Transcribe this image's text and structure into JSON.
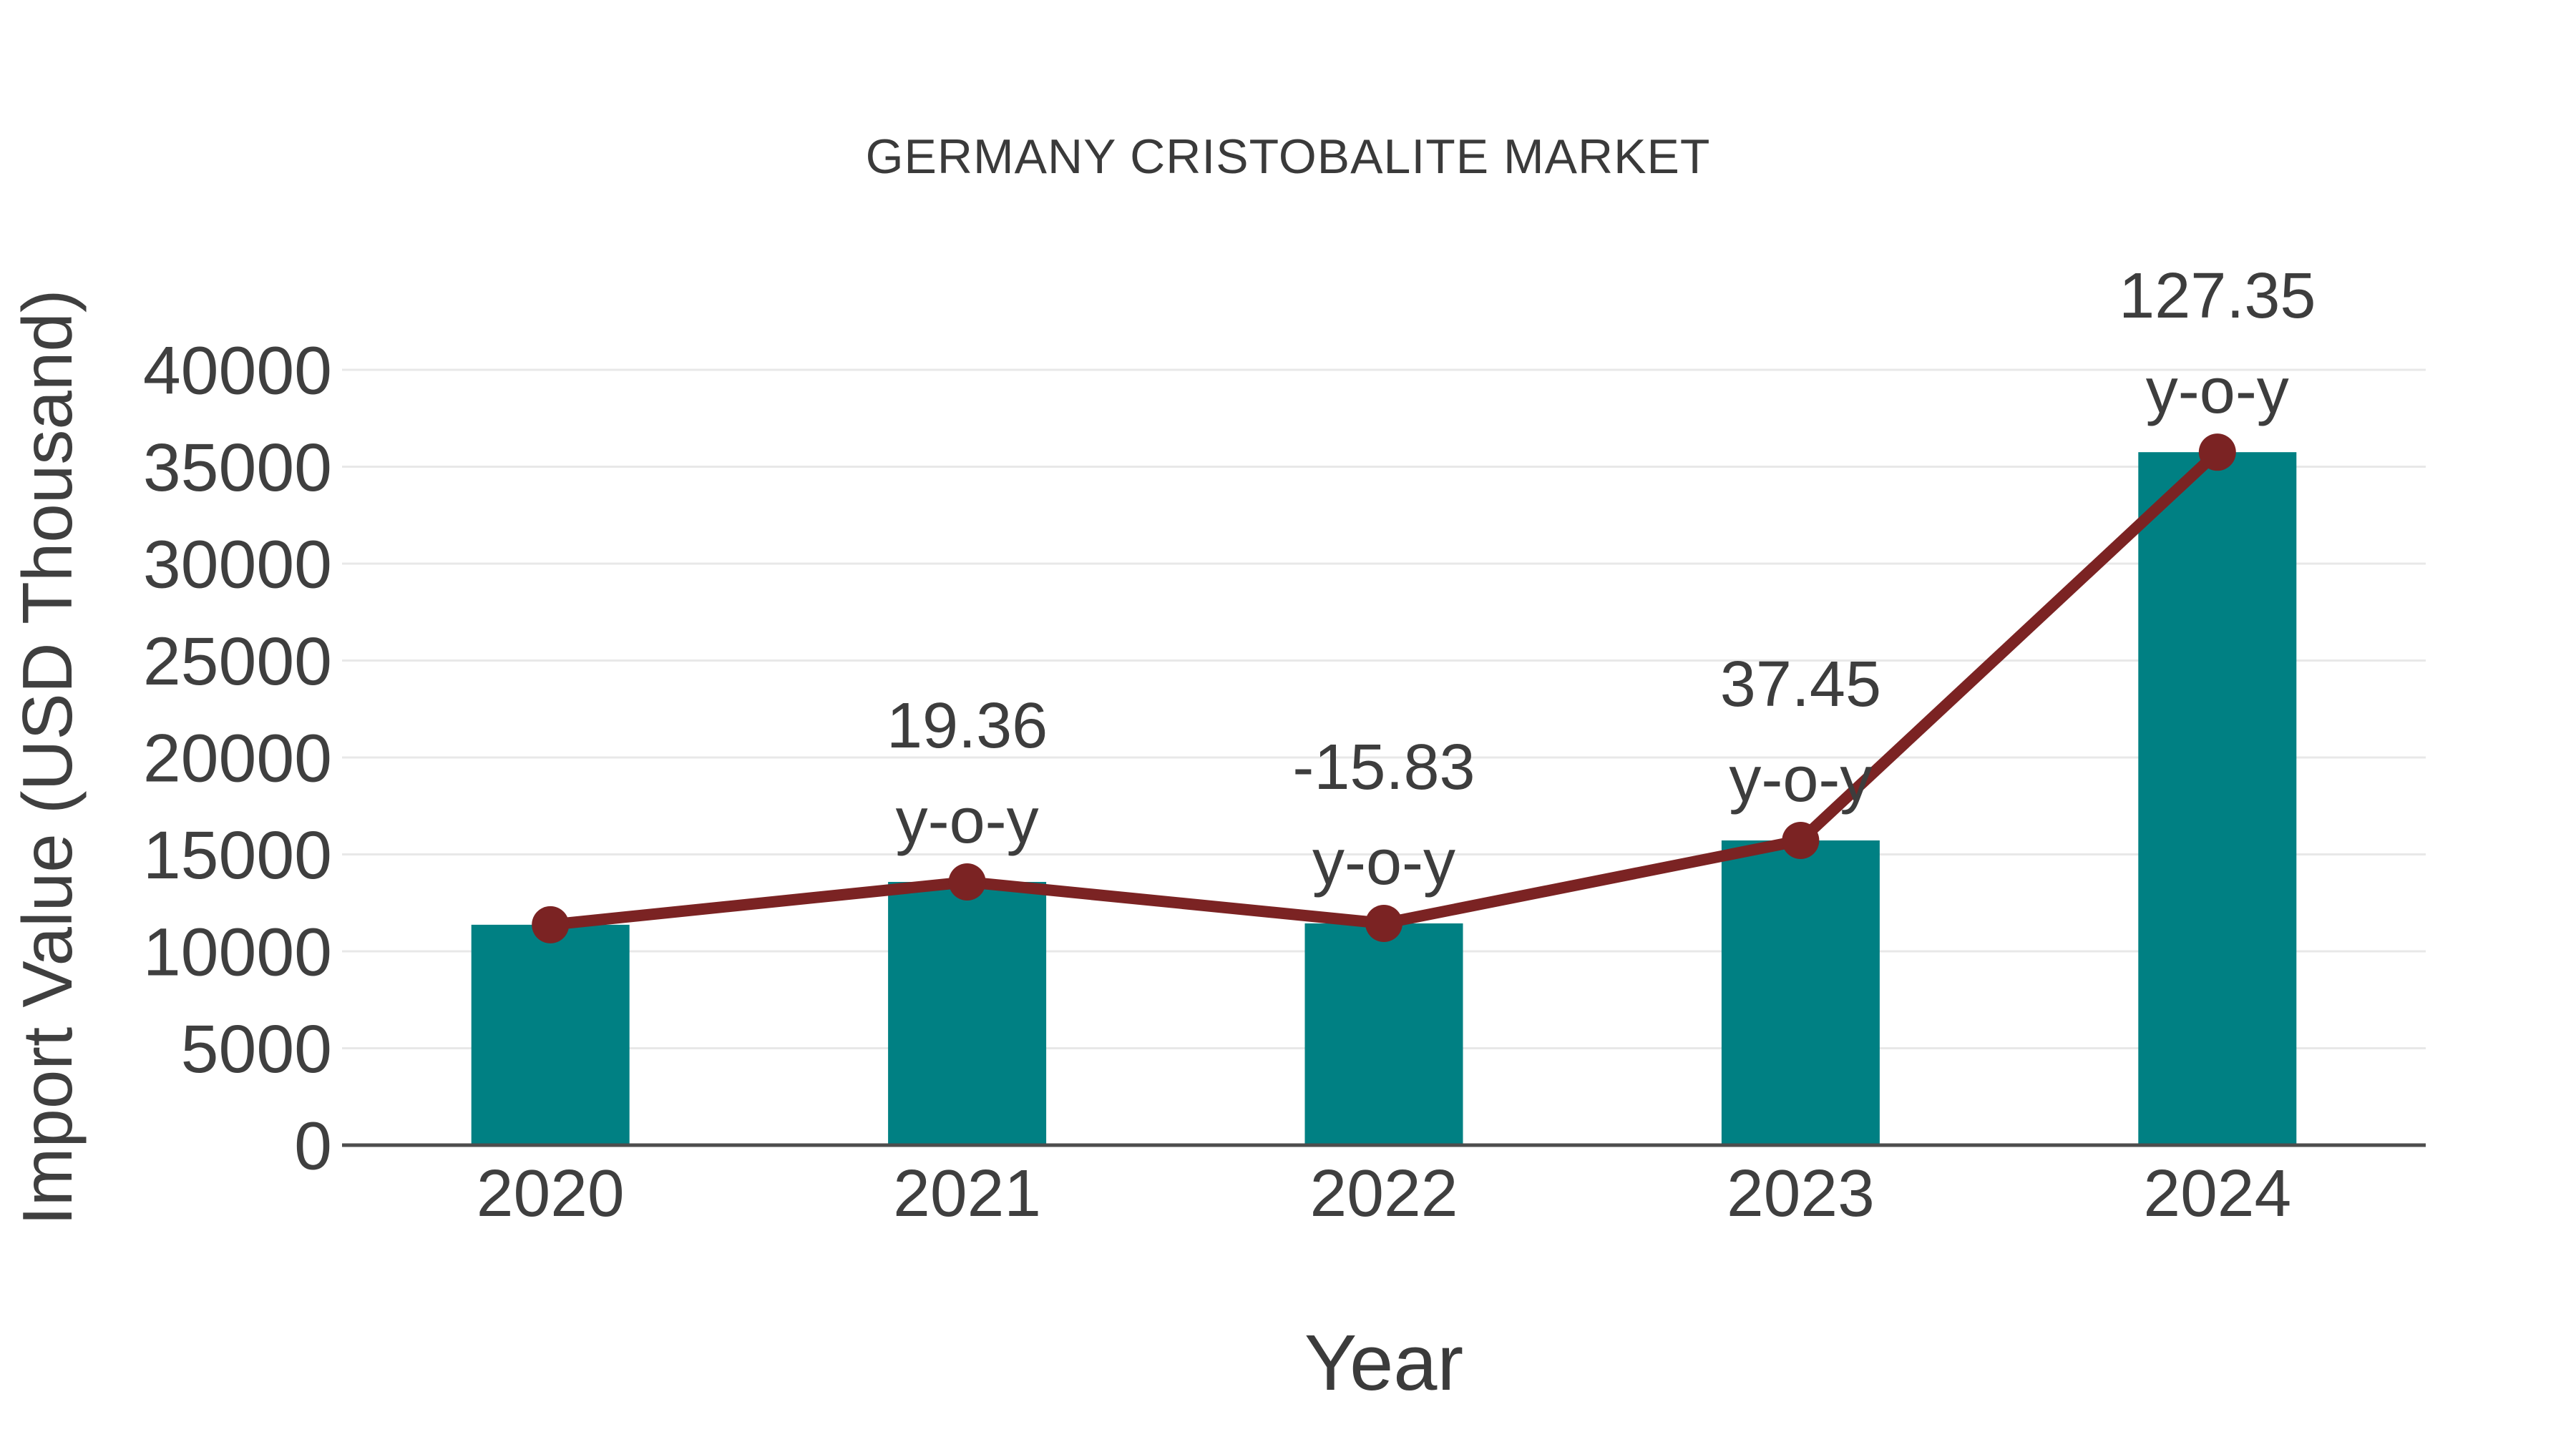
{
  "figure": {
    "background": "#ffffff"
  },
  "chart_data": {
    "type": "bar",
    "title": "GERMANY CRISTOBALITE MARKET",
    "xlabel": "Year",
    "ylabel": "Import Value (USD Thousand)",
    "categories": [
      "2020",
      "2021",
      "2022",
      "2023",
      "2024"
    ],
    "series": [
      {
        "name": "Import Value (USD Thousand)",
        "type": "bar",
        "color": "#008083",
        "values": [
          11370,
          13580,
          11440,
          15720,
          35750
        ]
      },
      {
        "name": "y-o-y trend line",
        "type": "line",
        "color": "#7b2323",
        "marker": "circle",
        "values": [
          11370,
          13580,
          11440,
          15720,
          35750
        ]
      }
    ],
    "yoy_percent": [
      null,
      19.36,
      -15.83,
      37.45,
      127.35
    ],
    "point_labels": [
      {
        "category": "2021",
        "line1": "19.36",
        "line2": "y-o-y"
      },
      {
        "category": "2022",
        "line1": "-15.83",
        "line2": "y-o-y"
      },
      {
        "category": "2023",
        "line1": "37.45",
        "line2": "y-o-y"
      },
      {
        "category": "2024",
        "line1": "127.35",
        "line2": "y-o-y"
      }
    ],
    "ylim": [
      0,
      40000
    ],
    "yticks": [
      0,
      5000,
      10000,
      15000,
      20000,
      25000,
      30000,
      35000,
      40000
    ],
    "grid": true,
    "legend_position": "none"
  },
  "colors": {
    "bar": "#008083",
    "line": "#7b2323",
    "grid": "#e8e8e8",
    "axis_line": "#4d4d4d",
    "tick_text": "#3f3f3f",
    "title_text": "#3a3a3a",
    "label_text": "#3d3d3d"
  }
}
